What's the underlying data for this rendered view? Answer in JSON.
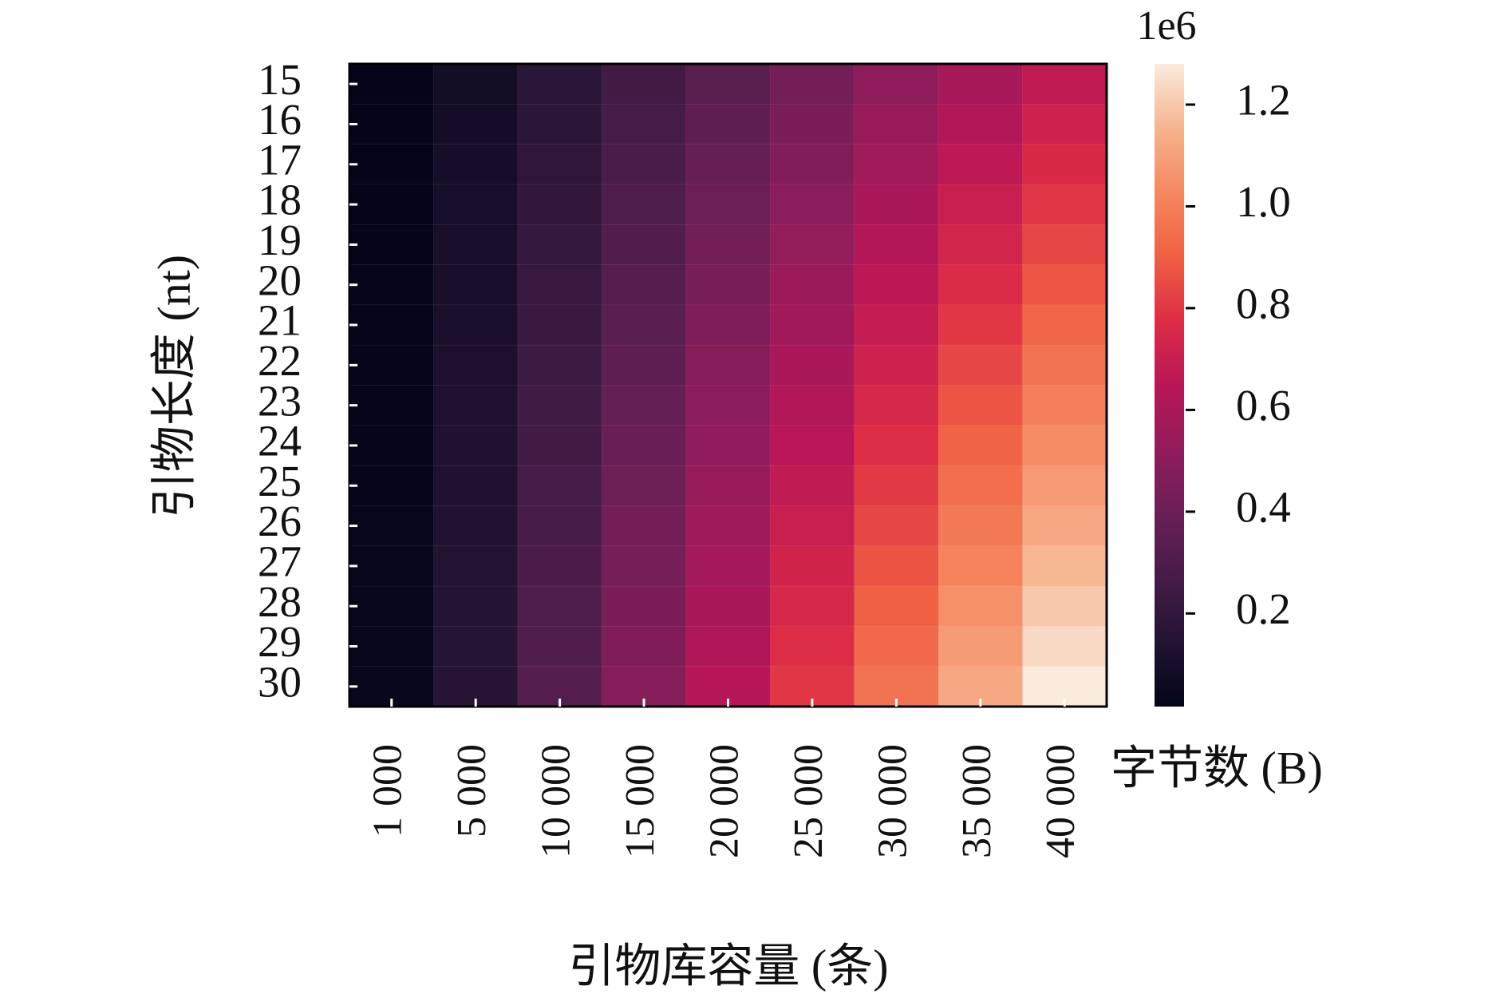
{
  "chart_data": {
    "type": "heatmap",
    "x_label": "引物库容量 (条)",
    "y_label": "引物长度 (nt)",
    "categories": [
      "1 000",
      "5 000",
      "10 000",
      "15 000",
      "20 000",
      "25 000",
      "30 000",
      "35 000",
      "40 000"
    ],
    "y_categories": [
      "15",
      "16",
      "17",
      "18",
      "19",
      "20",
      "21",
      "22",
      "23",
      "24",
      "25",
      "26",
      "27",
      "28",
      "29",
      "30"
    ],
    "values": [
      [
        17000,
        85000,
        170000,
        255000,
        340000,
        425000,
        510000,
        595000,
        680000
      ],
      [
        18000,
        90000,
        180000,
        270000,
        360000,
        450000,
        540000,
        630000,
        720000
      ],
      [
        19000,
        95000,
        190000,
        285000,
        380000,
        475000,
        570000,
        665000,
        760000
      ],
      [
        20000,
        100000,
        200000,
        300000,
        400000,
        500000,
        600000,
        700000,
        800000
      ],
      [
        21000,
        105000,
        210000,
        315000,
        420000,
        525000,
        630000,
        735000,
        840000
      ],
      [
        22000,
        110000,
        220000,
        330000,
        440000,
        550000,
        660000,
        770000,
        880000
      ],
      [
        23000,
        115000,
        230000,
        345000,
        460000,
        575000,
        690000,
        805000,
        920000
      ],
      [
        24000,
        120000,
        240000,
        360000,
        480000,
        600000,
        720000,
        840000,
        960000
      ],
      [
        25000,
        125000,
        250000,
        375000,
        500000,
        625000,
        750000,
        875000,
        1000000
      ],
      [
        26000,
        130000,
        260000,
        390000,
        520000,
        650000,
        780000,
        910000,
        1040000
      ],
      [
        27000,
        135000,
        270000,
        405000,
        540000,
        675000,
        810000,
        945000,
        1080000
      ],
      [
        28000,
        140000,
        280000,
        420000,
        560000,
        700000,
        840000,
        980000,
        1120000
      ],
      [
        29000,
        145000,
        290000,
        435000,
        580000,
        725000,
        870000,
        1015000,
        1160000
      ],
      [
        30000,
        150000,
        300000,
        450000,
        600000,
        750000,
        900000,
        1050000,
        1200000
      ],
      [
        31000,
        155000,
        310000,
        465000,
        620000,
        775000,
        930000,
        1085000,
        1240000
      ],
      [
        32000,
        160000,
        320000,
        480000,
        640000,
        800000,
        960000,
        1120000,
        1280000
      ]
    ],
    "colorbar": {
      "label": "字节数 (B)",
      "offset_label": "1e6",
      "lim": [
        17000,
        1280000
      ],
      "ticks": [
        {
          "value": 200000,
          "label": "0.2"
        },
        {
          "value": 400000,
          "label": "0.4"
        },
        {
          "value": 600000,
          "label": "0.6"
        },
        {
          "value": 800000,
          "label": "0.8"
        },
        {
          "value": 1000000,
          "label": "1.0"
        },
        {
          "value": 1200000,
          "label": "1.2"
        }
      ]
    },
    "colormap": [
      "#03051a",
      "#221331",
      "#451c47",
      "#6a1f56",
      "#921c5b",
      "#b91657",
      "#dd2c45",
      "#f06043",
      "#f58860",
      "#f6b48e",
      "#faebdd"
    ]
  }
}
